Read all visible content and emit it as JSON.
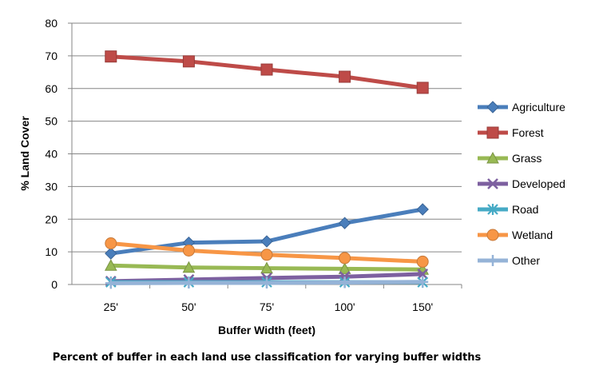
{
  "chart_data": {
    "type": "line",
    "categories": [
      "25'",
      "50'",
      "75'",
      "100'",
      "150'"
    ],
    "xlabel": "Buffer Width (feet)",
    "ylabel": "% Land Cover",
    "ylim": [
      0,
      80
    ],
    "yticks": [
      "0",
      "10",
      "20",
      "30",
      "40",
      "50",
      "60",
      "70",
      "80"
    ],
    "grid": true,
    "legend_position": "right",
    "series": [
      {
        "name": "Agriculture",
        "color": "#4A7EBB",
        "marker": "diamond",
        "values": [
          9.5,
          12.8,
          13.2,
          18.8,
          23.0
        ]
      },
      {
        "name": "Forest",
        "color": "#BE4B48",
        "marker": "square",
        "values": [
          69.8,
          68.3,
          65.8,
          63.6,
          60.2
        ]
      },
      {
        "name": "Grass",
        "color": "#98B954",
        "marker": "triangle",
        "values": [
          5.8,
          5.2,
          5.0,
          4.8,
          4.6
        ]
      },
      {
        "name": "Developed",
        "color": "#7D60A0",
        "marker": "x",
        "values": [
          1.0,
          1.5,
          2.0,
          2.4,
          3.2
        ]
      },
      {
        "name": "Road",
        "color": "#46AAC5",
        "marker": "star",
        "values": [
          0.7,
          0.7,
          0.7,
          0.7,
          0.7
        ]
      },
      {
        "name": "Wetland",
        "color": "#F79646",
        "marker": "circle",
        "values": [
          12.6,
          10.4,
          9.1,
          8.1,
          7.0
        ]
      },
      {
        "name": "Other",
        "color": "#95B3D7",
        "marker": "plus",
        "values": [
          0.4,
          0.5,
          0.5,
          0.6,
          0.8
        ]
      }
    ]
  },
  "caption": "Percent of buffer in each land use classification for varying buffer widths"
}
